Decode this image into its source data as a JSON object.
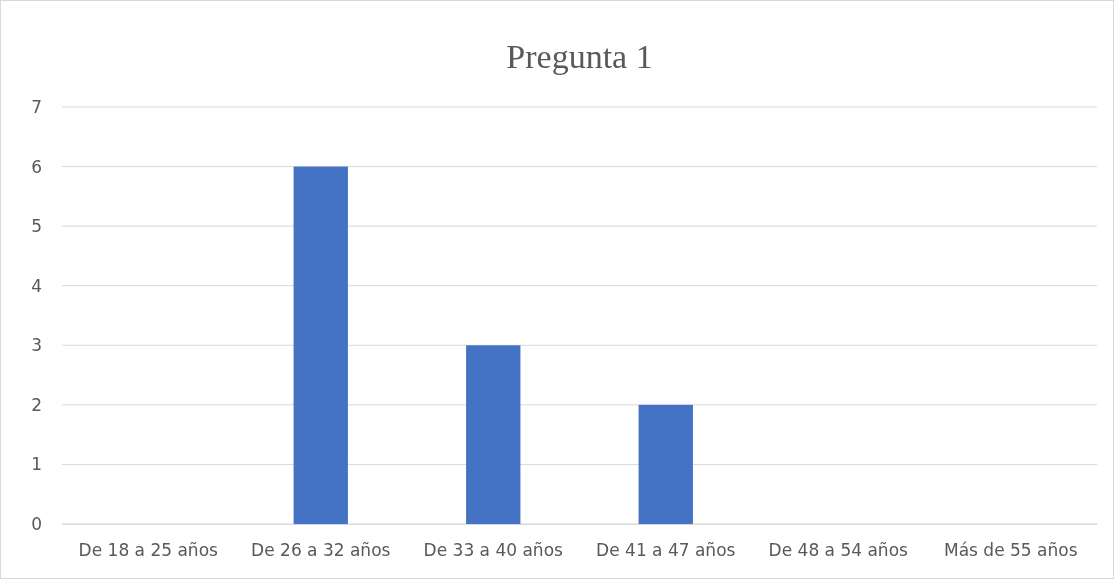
{
  "chart_data": {
    "type": "bar",
    "title": "Pregunta 1",
    "categories": [
      "De 18 a 25 años",
      "De 26 a 32 años",
      "De 33 a 40 años",
      "De 41 a 47 años",
      "De 48 a 54 años",
      "Más de 55 años"
    ],
    "values": [
      0,
      6,
      3,
      2,
      0,
      0
    ],
    "color": "#4472c4",
    "ylim": [
      0,
      7
    ],
    "yticks": [
      0,
      1,
      2,
      3,
      4,
      5,
      6,
      7
    ],
    "grid": "y"
  }
}
